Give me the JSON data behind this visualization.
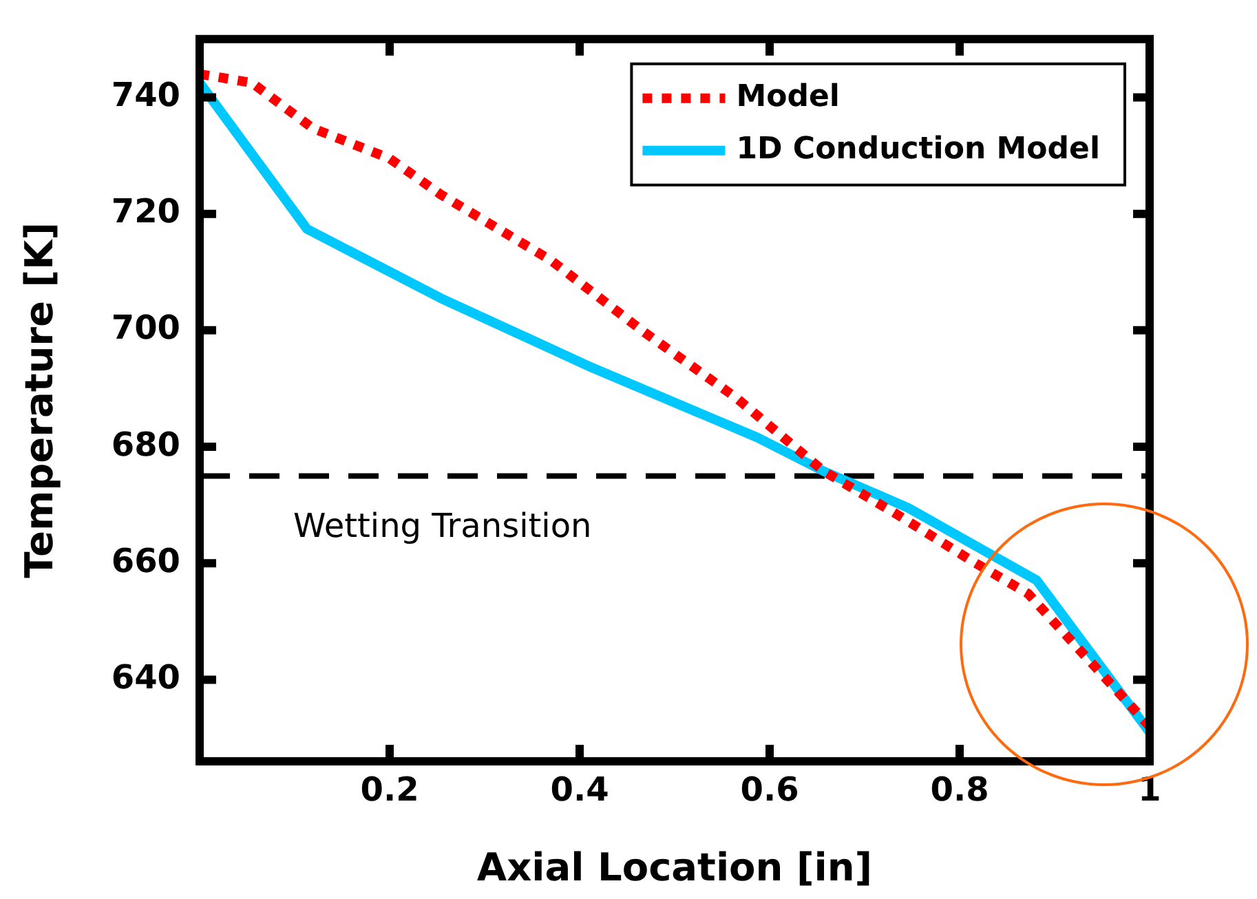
{
  "chart_data": {
    "type": "line",
    "xlabel": "Axial Location [in]",
    "ylabel": "Temperature [K]",
    "xlim": [
      0,
      1
    ],
    "xticks": [
      0.2,
      0.4,
      0.6,
      0.8,
      1
    ],
    "ylim": [
      626,
      750
    ],
    "yticks": [
      640,
      660,
      680,
      700,
      720,
      740
    ],
    "grid": false,
    "legend": "top right",
    "marker": "none",
    "series": [
      {
        "name": "Model",
        "color": "#ff0000",
        "line_style": "dotted",
        "x": [
          0,
          0.055,
          0.119,
          0.2,
          0.254,
          0.37,
          0.467,
          0.565,
          0.657,
          0.733,
          0.814,
          0.872,
          1
        ],
        "values": [
          744,
          742.5,
          734.7,
          729.5,
          723.3,
          712,
          699.8,
          688.4,
          675.8,
          668.5,
          660.3,
          654.8,
          632
        ]
      },
      {
        "name": "1D Conduction Model",
        "color": "#00c8ff",
        "line_style": "solid",
        "x": [
          0,
          0.113,
          0.254,
          0.413,
          0.587,
          0.657,
          0.746,
          0.881,
          1
        ],
        "values": [
          742.5,
          717.4,
          705.5,
          693.6,
          681.6,
          675.8,
          669.5,
          657.1,
          631
        ]
      }
    ],
    "ref_lines": [
      {
        "axis": "y",
        "value": 675,
        "label": "Wetting Transition",
        "color": "#000000",
        "line_style": "dashed"
      }
    ]
  }
}
